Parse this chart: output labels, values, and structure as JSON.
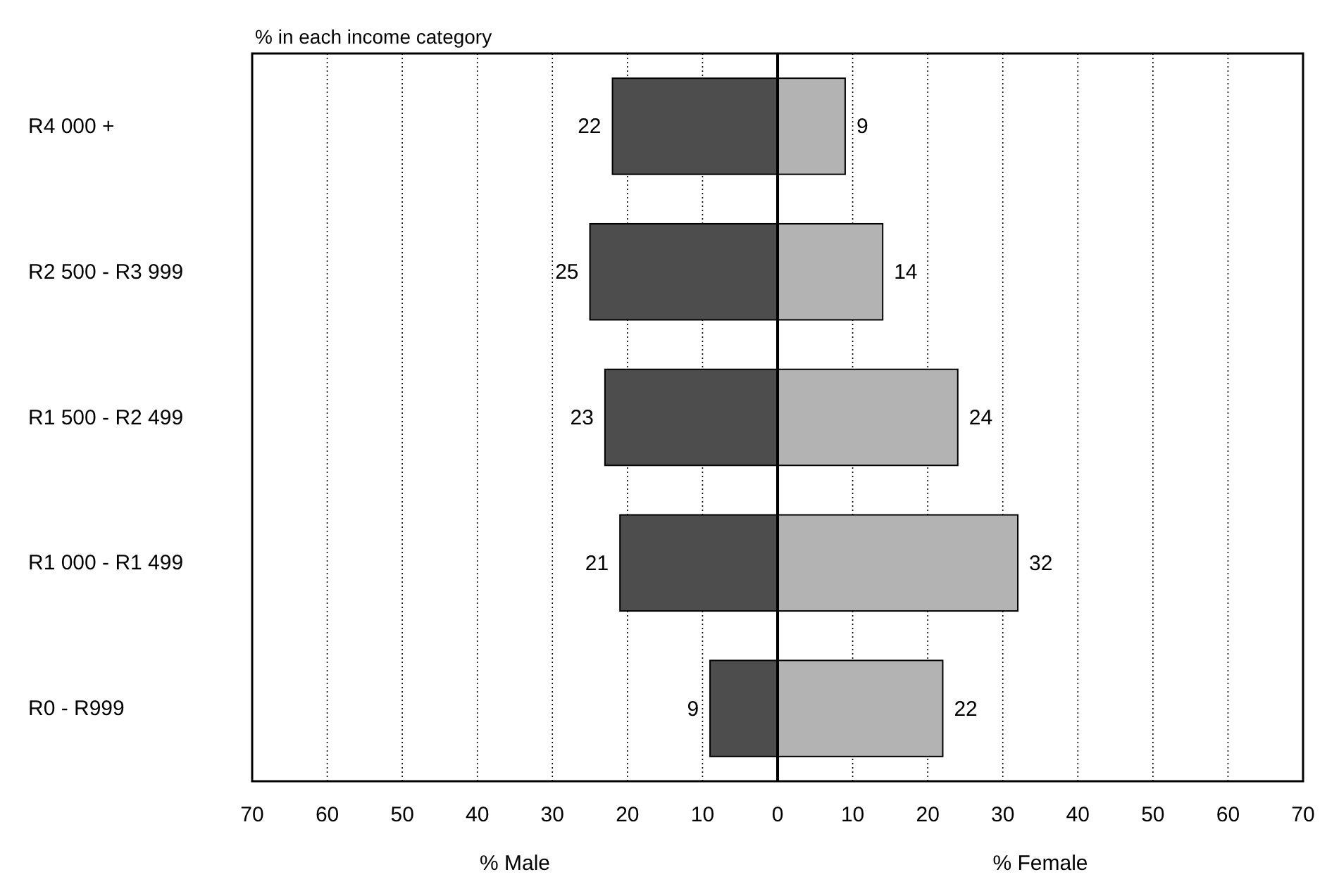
{
  "chart_data": {
    "type": "bar",
    "orientation": "horizontal",
    "title": "% in each income category",
    "xlabel": "% Male",
    "annotations": [
      "% Female"
    ],
    "categories": [
      "R4 000 +",
      "R2 500 - R3 999",
      "R1 500 - R2 499",
      "R1 000 - R1 499",
      "R0 - R999"
    ],
    "series": [
      {
        "color": "#4d4d4d",
        "values": [
          22,
          25,
          23,
          21,
          9
        ],
        "base": [
          -22,
          -25,
          -23,
          -21,
          -9
        ]
      },
      {
        "color": "#b3b3b3",
        "values": [
          9,
          14,
          24,
          32,
          22
        ],
        "base": [
          0,
          0,
          0,
          0,
          0
        ]
      }
    ],
    "data_labels": true,
    "xlim": [
      -70,
      70
    ],
    "xticks": [
      {
        "value": -70,
        "label": "70"
      },
      {
        "value": -60,
        "label": "60"
      },
      {
        "value": -50,
        "label": "50"
      },
      {
        "value": -40,
        "label": "40"
      },
      {
        "value": -30,
        "label": "30"
      },
      {
        "value": -20,
        "label": "20"
      },
      {
        "value": -10,
        "label": "10"
      },
      0,
      10,
      20,
      30,
      40,
      50,
      60,
      70
    ],
    "grid": "x"
  }
}
